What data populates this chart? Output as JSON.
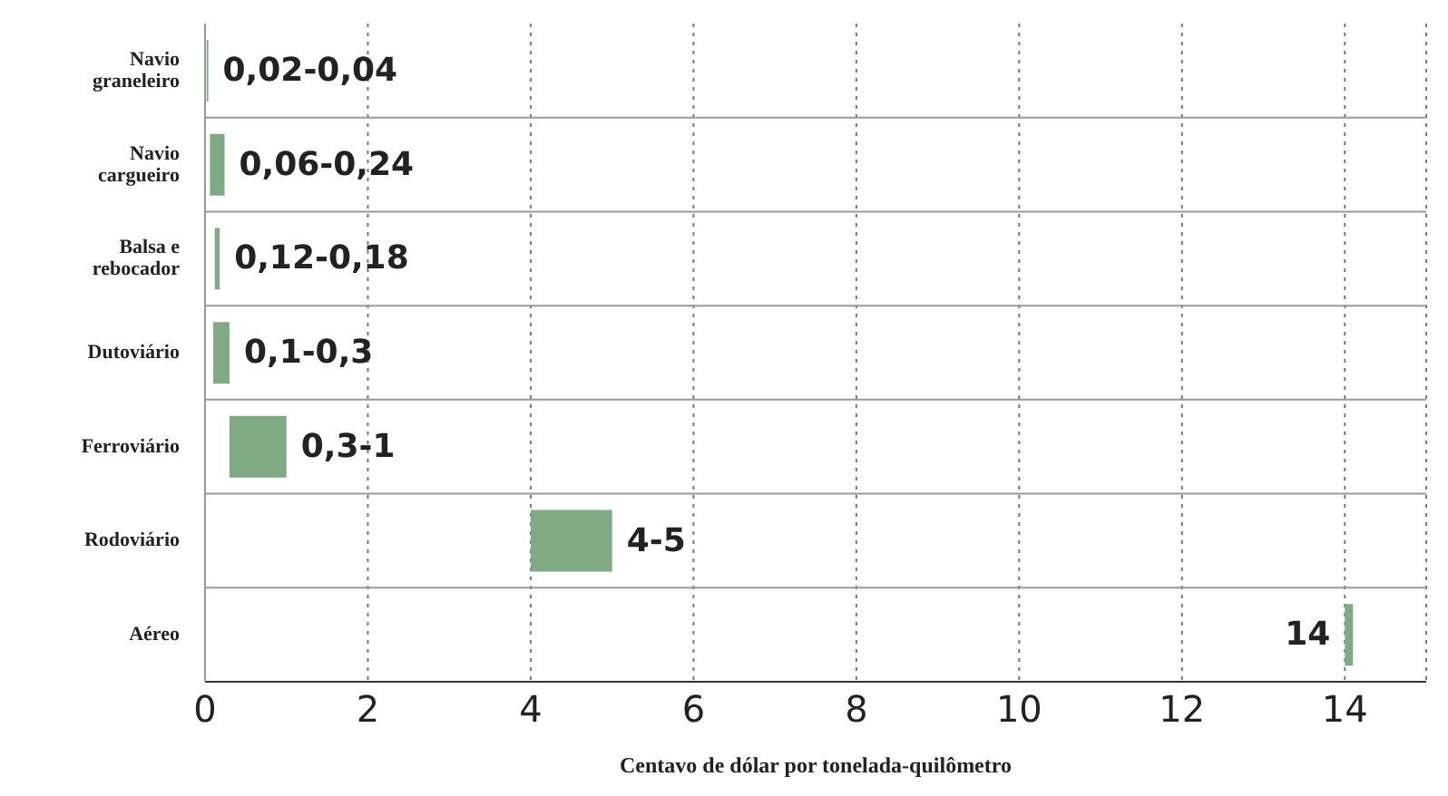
{
  "chart_data": {
    "type": "bar",
    "orientation": "horizontal",
    "xlabel": "Centavo de dólar por tonelada-quilômetro",
    "categories": [
      "Navio graneleiro",
      "Navio cargueiro",
      "Balsa e rebocador",
      "Dutoviário",
      "Ferroviário",
      "Rodoviário",
      "Aéreo"
    ],
    "base": [
      0.02,
      0.06,
      0.12,
      0.1,
      0.3,
      4,
      14
    ],
    "values": [
      0.02,
      0.18,
      0.06,
      0.2,
      0.7,
      1,
      0.1
    ],
    "value_labels": [
      "0,02-0,04",
      "0,06-0,24",
      "0,12-0,18",
      "0,1-0,3",
      "0,3-1",
      "4-5",
      "14"
    ],
    "color": "#7faa84",
    "xlim": [
      0,
      15
    ],
    "xticks": [
      0,
      2,
      4,
      6,
      8,
      10,
      12,
      14
    ],
    "grid": true
  }
}
